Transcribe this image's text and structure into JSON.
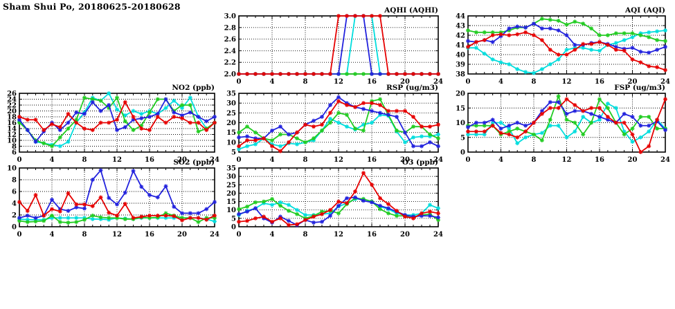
{
  "page_title": "Sham Shui Po, 20180625-20180628",
  "colors": {
    "red": "#e60000",
    "blue": "#2222dd",
    "green": "#22cc22",
    "cyan": "#00dddd",
    "axis": "#000000",
    "background": "#ffffff"
  },
  "chart_data": [
    {
      "id": "aqhi",
      "title": "AQHI (AQHI)",
      "type": "line",
      "xlim": [
        0,
        24
      ],
      "x_ticks": [
        0,
        4,
        8,
        12,
        16,
        20,
        24
      ],
      "x_minor_step": 1,
      "ylim": [
        2.0,
        3.0
      ],
      "y_ticks": [
        2.0,
        2.2,
        2.4,
        2.6,
        2.8,
        3.0
      ],
      "y_decimals": 1,
      "grid": true,
      "legend": "none",
      "series": [
        {
          "name": "cyan",
          "values": [
            2,
            2,
            2,
            2,
            2,
            2,
            2,
            2,
            2,
            2,
            2,
            2,
            2,
            2,
            3,
            3,
            3,
            2,
            2,
            2,
            2,
            2,
            2,
            2,
            2
          ]
        },
        {
          "name": "green",
          "values": [
            2,
            2,
            2,
            2,
            2,
            2,
            2,
            2,
            2,
            2,
            2,
            2,
            2,
            2,
            2,
            2,
            2,
            2,
            2,
            2,
            2,
            2,
            2,
            2,
            2
          ]
        },
        {
          "name": "blue",
          "values": [
            2,
            2,
            2,
            2,
            2,
            2,
            2,
            2,
            2,
            2,
            2,
            2,
            2,
            3,
            3,
            3,
            2,
            2,
            2,
            2,
            2,
            2,
            2,
            2,
            2
          ]
        },
        {
          "name": "red",
          "values": [
            2,
            2,
            2,
            2,
            2,
            2,
            2,
            2,
            2,
            2,
            2,
            2,
            3,
            3,
            3,
            3,
            3,
            3,
            2,
            2,
            2,
            2,
            2,
            2,
            2
          ]
        }
      ]
    },
    {
      "id": "aqi",
      "title": "AQI (AQI)",
      "type": "line",
      "xlim": [
        0,
        24
      ],
      "x_ticks": [
        0,
        4,
        8,
        12,
        16,
        20,
        24
      ],
      "x_minor_step": 1,
      "ylim": [
        38,
        44
      ],
      "y_ticks": [
        38,
        39,
        40,
        41,
        42,
        43,
        44
      ],
      "y_decimals": 0,
      "grid": true,
      "legend": "none",
      "series": [
        {
          "name": "cyan",
          "values": [
            40.7,
            40.7,
            40.1,
            39.5,
            39.2,
            39.0,
            38.5,
            38.2,
            38.1,
            38.5,
            39.0,
            39.5,
            40.5,
            40.7,
            40.7,
            40.5,
            40.4,
            41.0,
            41.2,
            41.5,
            41.8,
            42.2,
            42.3,
            42.4,
            42.5
          ]
        },
        {
          "name": "green",
          "values": [
            42.5,
            42.3,
            42.3,
            42.3,
            42.3,
            42.5,
            42.8,
            42.8,
            43.2,
            43.7,
            43.6,
            43.5,
            43.1,
            43.4,
            43.2,
            42.7,
            42.0,
            42.0,
            42.2,
            42.2,
            42.2,
            42.0,
            41.8,
            41.5,
            41.4
          ]
        },
        {
          "name": "blue",
          "values": [
            41.4,
            41.3,
            41.5,
            41.3,
            41.9,
            42.7,
            42.9,
            42.8,
            43.2,
            42.7,
            42.7,
            42.5,
            42.0,
            41.0,
            41.0,
            41.2,
            41.3,
            41.1,
            40.8,
            40.6,
            40.7,
            40.3,
            40.2,
            40.5,
            40.8
          ]
        },
        {
          "name": "red",
          "values": [
            40.8,
            41.3,
            41.5,
            42.0,
            42.1,
            42.0,
            42.1,
            42.3,
            42.0,
            41.5,
            40.5,
            40.0,
            40.0,
            40.5,
            41.1,
            41.1,
            41.3,
            41.0,
            40.5,
            40.4,
            39.5,
            39.2,
            38.8,
            38.7,
            38.4
          ]
        }
      ]
    },
    {
      "id": "no2",
      "title": "NO2 (ppb)",
      "type": "line",
      "xlim": [
        0,
        24
      ],
      "x_ticks": [
        0,
        4,
        8,
        12,
        16,
        20,
        24
      ],
      "x_minor_step": 1,
      "ylim": [
        6,
        26
      ],
      "y_ticks": [
        6,
        8,
        10,
        12,
        14,
        16,
        18,
        20,
        22,
        24,
        26
      ],
      "y_decimals": 0,
      "grid": true,
      "legend": "none",
      "series": [
        {
          "name": "cyan",
          "values": [
            16.5,
            13.5,
            9.5,
            9,
            8.5,
            8,
            9.5,
            16,
            19.5,
            24.5,
            23.5,
            26,
            20.5,
            18.5,
            20,
            19,
            20,
            19,
            21,
            23.5,
            21,
            24.5,
            18,
            14,
            16
          ]
        },
        {
          "name": "green",
          "values": [
            16,
            13.5,
            10,
            9,
            8,
            11,
            14,
            17,
            24.5,
            24,
            23.5,
            21,
            24.5,
            16.5,
            13.5,
            15,
            19.5,
            24,
            24,
            20,
            22,
            22,
            13,
            14,
            16
          ]
        },
        {
          "name": "blue",
          "values": [
            17,
            13.5,
            9.5,
            13,
            16,
            13.5,
            16,
            19.5,
            19,
            23,
            20,
            22,
            13.5,
            14.5,
            17,
            17.5,
            18,
            19,
            24,
            19.5,
            18.5,
            19.5,
            18,
            16.5,
            18
          ]
        },
        {
          "name": "red",
          "values": [
            18,
            17,
            17,
            13.5,
            15.5,
            14.5,
            19,
            16,
            14,
            13.5,
            16,
            16,
            17,
            23,
            18,
            14,
            13.5,
            18,
            16,
            18,
            17.5,
            16,
            16,
            13.5,
            16
          ]
        }
      ]
    },
    {
      "id": "rsp",
      "title": "RSP (ug/m3)",
      "type": "line",
      "xlim": [
        0,
        24
      ],
      "x_ticks": [
        0,
        4,
        8,
        12,
        16,
        20,
        24
      ],
      "x_minor_step": 1,
      "ylim": [
        5,
        35
      ],
      "y_ticks": [
        5,
        10,
        15,
        20,
        25,
        30,
        35
      ],
      "y_decimals": 0,
      "grid": true,
      "legend": "none",
      "series": [
        {
          "name": "cyan",
          "values": [
            6.5,
            8,
            9,
            12,
            9,
            8,
            9.5,
            9,
            10,
            11,
            16,
            22,
            20,
            18,
            16.5,
            19,
            20,
            24,
            23.5,
            15.5,
            10,
            12.5,
            13,
            13,
            14
          ]
        },
        {
          "name": "green",
          "values": [
            15,
            18,
            15,
            12,
            11,
            14,
            14,
            12,
            10,
            12,
            16,
            20,
            25,
            24,
            17,
            16,
            31,
            32,
            24,
            16,
            15,
            18,
            18,
            14,
            12
          ]
        },
        {
          "name": "blue",
          "values": [
            12.5,
            13,
            12,
            12,
            16,
            18,
            14,
            15,
            19,
            21,
            23,
            29,
            33,
            30,
            28,
            27,
            26,
            25,
            24,
            23,
            15,
            8,
            8,
            10,
            8
          ]
        },
        {
          "name": "red",
          "values": [
            8,
            11,
            11,
            12,
            8,
            5.5,
            10,
            15,
            19,
            18,
            19,
            25,
            31,
            29,
            28,
            30,
            30,
            29,
            26,
            26,
            26,
            23,
            18,
            18,
            19
          ]
        }
      ]
    },
    {
      "id": "fsp",
      "title": "FSP (ug/m3)",
      "type": "line",
      "xlim": [
        0,
        24
      ],
      "x_ticks": [
        0,
        4,
        8,
        12,
        16,
        20,
        24
      ],
      "x_minor_step": 1,
      "ylim": [
        0,
        20
      ],
      "y_ticks": [
        0,
        5,
        10,
        15,
        20
      ],
      "y_decimals": 0,
      "grid": true,
      "legend": "none",
      "series": [
        {
          "name": "cyan",
          "values": [
            6,
            6,
            6,
            10,
            10,
            8,
            3,
            5,
            6,
            6.5,
            9,
            9,
            5,
            7,
            12,
            10,
            11,
            16.5,
            15,
            7,
            3.5,
            5,
            7,
            11,
            8
          ]
        },
        {
          "name": "green",
          "values": [
            9,
            9,
            9,
            9,
            6,
            7,
            8,
            7,
            6,
            4,
            11,
            19,
            11,
            10,
            6,
            10,
            18,
            15,
            10,
            6,
            8,
            12,
            12,
            8,
            8
          ]
        },
        {
          "name": "blue",
          "values": [
            8.5,
            10,
            10,
            11,
            8,
            9,
            10,
            9,
            10,
            14,
            17,
            17,
            13,
            14,
            14,
            13,
            12,
            11,
            10,
            13,
            12,
            9,
            9,
            10.5,
            7.5
          ]
        },
        {
          "name": "red",
          "values": [
            7,
            7,
            7,
            9,
            6.5,
            6,
            5,
            7,
            10,
            13,
            15,
            15,
            18,
            16,
            14,
            15,
            15,
            12,
            10,
            10,
            6,
            0,
            2,
            11,
            18
          ]
        }
      ]
    },
    {
      "id": "so2",
      "title": "SO2 (ppb)",
      "type": "line",
      "xlim": [
        0,
        24
      ],
      "x_ticks": [
        0,
        4,
        8,
        12,
        16,
        20,
        24
      ],
      "x_minor_step": 1,
      "ylim": [
        0,
        10
      ],
      "y_ticks": [
        0,
        2,
        4,
        6,
        8,
        10
      ],
      "y_decimals": 0,
      "grid": true,
      "legend": "none",
      "series": [
        {
          "name": "cyan",
          "values": [
            1.3,
            1.2,
            1.2,
            1.2,
            1.5,
            1.5,
            1.5,
            1.5,
            1.5,
            1.3,
            1.3,
            1.2,
            1.5,
            1.4,
            1.3,
            1.5,
            1.5,
            1.5,
            1.5,
            1.5,
            1.5,
            1.5,
            1.5,
            1.3,
            0.9
          ]
        },
        {
          "name": "green",
          "values": [
            1,
            0.8,
            0.9,
            1,
            1.9,
            0.8,
            0.7,
            0.8,
            1.2,
            1.9,
            1.6,
            1.5,
            1.5,
            1.3,
            1.3,
            1.6,
            1.5,
            1.6,
            2.3,
            1.9,
            1.5,
            1.5,
            0.8,
            1.5,
            1.5
          ]
        },
        {
          "name": "blue",
          "values": [
            1.5,
            1.9,
            1.5,
            1.9,
            4.6,
            3,
            2.7,
            3.3,
            3.1,
            8,
            9.6,
            4.9,
            3.8,
            5.8,
            9.5,
            6.8,
            5.4,
            5,
            6.9,
            3.4,
            2.3,
            2.3,
            2.3,
            3,
            4.2
          ]
        },
        {
          "name": "red",
          "values": [
            4.2,
            2.7,
            5.4,
            1.9,
            3,
            2.6,
            5.7,
            3.8,
            3.8,
            3.5,
            5,
            2.4,
            1.9,
            3.9,
            1.5,
            1.7,
            1.9,
            1.9,
            1.9,
            1.8,
            1.1,
            1.5,
            1.5,
            1.2,
            1.9
          ]
        }
      ]
    },
    {
      "id": "o3",
      "title": "O3 (ppb)",
      "type": "line",
      "xlim": [
        0,
        24
      ],
      "x_ticks": [
        0,
        4,
        8,
        12,
        16,
        20,
        24
      ],
      "x_minor_step": 1,
      "ylim": [
        0,
        35
      ],
      "y_ticks": [
        0,
        5,
        10,
        15,
        20,
        25,
        30,
        35
      ],
      "y_decimals": 0,
      "grid": true,
      "legend": "none",
      "series": [
        {
          "name": "cyan",
          "values": [
            7,
            9.5,
            11,
            14,
            13,
            14.5,
            13,
            10,
            7,
            7,
            7.5,
            8,
            12,
            14,
            16.5,
            16.5,
            15,
            12,
            10.5,
            8,
            7,
            7,
            8,
            13,
            11
          ]
        },
        {
          "name": "green",
          "values": [
            10.5,
            12,
            14.5,
            15,
            16.5,
            12.5,
            9.5,
            7.5,
            5,
            6.5,
            9,
            9.5,
            8,
            13.5,
            17,
            16.5,
            15,
            10.5,
            8,
            6.5,
            6.5,
            6,
            7,
            7.5,
            4
          ]
        },
        {
          "name": "blue",
          "values": [
            7.5,
            9,
            11,
            5,
            2.5,
            6,
            3.5,
            1,
            4,
            2.5,
            3,
            6.5,
            12.5,
            17,
            17.5,
            15.5,
            14.5,
            12.5,
            11,
            9,
            7,
            6,
            6.5,
            6.5,
            5.5
          ]
        },
        {
          "name": "red",
          "values": [
            3,
            3.5,
            5,
            6,
            3,
            5,
            1,
            1.5,
            4,
            6,
            7.5,
            10,
            15,
            14,
            21,
            32,
            25,
            17,
            13.5,
            9.5,
            6,
            5,
            8,
            9,
            8
          ]
        }
      ]
    }
  ]
}
